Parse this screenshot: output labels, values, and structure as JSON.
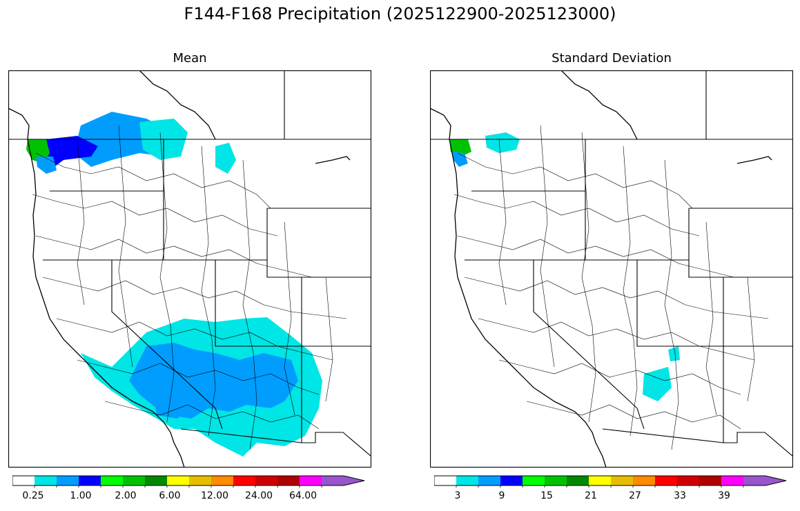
{
  "title": "F144-F168 Precipitation (2025122900-2025123000)",
  "panels": [
    {
      "id": "mean",
      "title": "Mean",
      "colorbar": {
        "colors": [
          "#ffffff",
          "#00e5e5",
          "#009dff",
          "#0000ff",
          "#00ff00",
          "#00c200",
          "#008800",
          "#ffff00",
          "#e6be00",
          "#ff8c00",
          "#ff0000",
          "#d00000",
          "#b00000",
          "#ff00ff",
          "#9955cc"
        ],
        "tick_labels": [
          "0.25",
          "1.00",
          "2.00",
          "6.00",
          "12.00",
          "24.00",
          "64.00"
        ],
        "extend": "max"
      }
    },
    {
      "id": "std",
      "title": "Standard Deviation",
      "colorbar": {
        "colors": [
          "#ffffff",
          "#00e5e5",
          "#009dff",
          "#0000ff",
          "#00ff00",
          "#00c200",
          "#008800",
          "#ffff00",
          "#e6be00",
          "#ff8c00",
          "#ff0000",
          "#d00000",
          "#b00000",
          "#ff00ff",
          "#9955cc"
        ],
        "tick_labels": [
          "3",
          "9",
          "15",
          "21",
          "27",
          "33",
          "39"
        ],
        "extend": "max"
      }
    }
  ],
  "map_colors": {
    "outline": "#000000",
    "cyan": "#00e5e5",
    "light_blue": "#009dff",
    "blue": "#0000ff",
    "green": "#00c200",
    "dark_green": "#008800"
  }
}
